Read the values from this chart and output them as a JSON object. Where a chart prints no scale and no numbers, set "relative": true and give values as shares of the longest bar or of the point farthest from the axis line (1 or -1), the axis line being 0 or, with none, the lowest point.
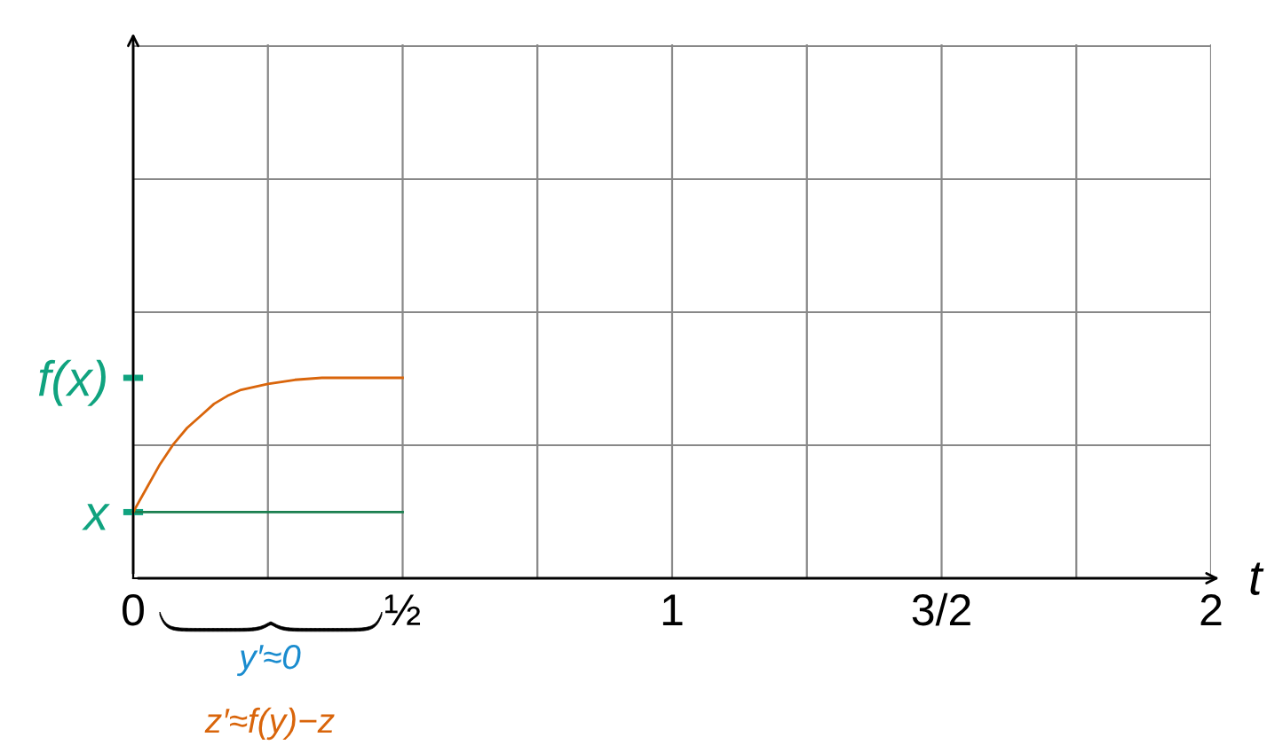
{
  "chart_data": {
    "type": "line",
    "relative": true,
    "xlabel": "t",
    "xlim": [
      0,
      2
    ],
    "grid": true,
    "marker": "none",
    "line_style": "solid",
    "xticks": [
      0,
      {
        "value": 0.25,
        "label": null
      },
      {
        "value": 0.5,
        "label": "½"
      },
      {
        "value": 0.75,
        "label": null
      },
      1,
      {
        "value": 1.25,
        "label": null
      },
      {
        "value": 1.5,
        "label": "3/2"
      },
      {
        "value": 1.75,
        "label": null
      },
      2
    ],
    "series": [
      {
        "color": "#1b7f4f",
        "x": [
          0,
          0.5
        ],
        "values": [
          0.33,
          0.33
        ]
      },
      {
        "color": "#d9650b",
        "x": [
          0,
          0.025,
          0.05,
          0.075,
          0.1,
          0.125,
          0.15,
          0.175,
          0.2,
          0.25,
          0.3,
          0.35,
          0.4,
          0.5
        ],
        "values": [
          0.33,
          0.45,
          0.57,
          0.67,
          0.75,
          0.81,
          0.87,
          0.91,
          0.94,
          0.97,
          0.99,
          1,
          1,
          1
        ]
      }
    ],
    "annotations": [
      "x",
      "f(x)",
      "y′≈0",
      "z′≈f(y)−z"
    ]
  }
}
